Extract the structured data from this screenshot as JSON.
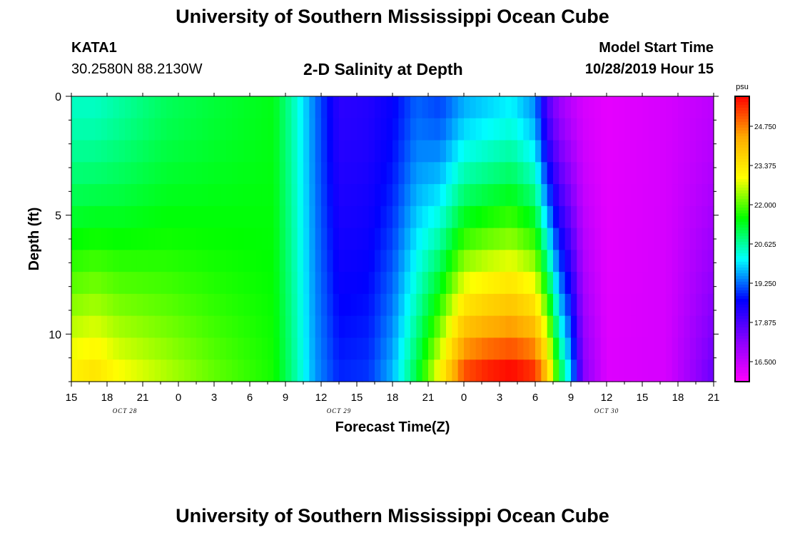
{
  "header": {
    "title_top": "University of Southern Mississippi Ocean Cube",
    "title_bottom": "University of Southern Mississippi Ocean Cube",
    "station": "KATA1",
    "coordinates": "30.2580N 88.2130W",
    "subtitle": "2-D Salinity at Depth",
    "model_start_label": "Model Start Time",
    "model_start_value": "10/28/2019 Hour 15"
  },
  "chart_data": {
    "type": "heatmap",
    "title": "2-D Salinity at Depth",
    "xlabel": "Forecast Time(Z)",
    "ylabel": "Depth (ft)",
    "x_tick_labels": [
      "15",
      "18",
      "21",
      "0",
      "3",
      "6",
      "9",
      "12",
      "15",
      "18",
      "21",
      "0",
      "3",
      "6",
      "9",
      "12",
      "15",
      "18",
      "21"
    ],
    "date_labels": [
      {
        "text": "OCT 28",
        "x_index": 1
      },
      {
        "text": "OCT 29",
        "x_index": 7
      },
      {
        "text": "OCT 30",
        "x_index": 14.5
      }
    ],
    "xlim_hours": [
      0,
      54
    ],
    "ylim": [
      0,
      12
    ],
    "y_ticks": [
      0,
      5,
      10
    ],
    "y_tick_labels": [
      "0",
      "5",
      "10"
    ],
    "depth_levels": [
      0,
      1,
      2,
      3,
      4,
      5,
      6,
      7,
      8,
      9,
      10,
      11,
      12
    ],
    "colorbar": {
      "unit": "psu",
      "min": 15.8,
      "max": 25.8,
      "tick_values": [
        16.5,
        17.875,
        19.25,
        20.625,
        22.0,
        23.375,
        24.75
      ],
      "tick_labels": [
        "16.500",
        "17.875",
        "19.250",
        "20.625",
        "22.000",
        "23.375",
        "24.750"
      ],
      "colors": [
        "#ff00ff",
        "#8800ff",
        "#0000ff",
        "#00ffff",
        "#00ff00",
        "#ffff00",
        "#ffaa00",
        "#ff0000"
      ]
    },
    "salinity_keyframes": [
      {
        "hour": 0,
        "surface": 20.4,
        "bottom": 23.0
      },
      {
        "hour": 2,
        "surface": 20.4,
        "bottom": 23.2
      },
      {
        "hour": 4,
        "surface": 20.6,
        "bottom": 22.8
      },
      {
        "hour": 8,
        "surface": 21.0,
        "bottom": 22.4
      },
      {
        "hour": 12,
        "surface": 21.2,
        "bottom": 22.0
      },
      {
        "hour": 17,
        "surface": 21.4,
        "bottom": 21.6
      },
      {
        "hour": 18.5,
        "surface": 20.6,
        "bottom": 20.8
      },
      {
        "hour": 20.5,
        "surface": 19.3,
        "bottom": 19.5
      },
      {
        "hour": 22.5,
        "surface": 18.2,
        "bottom": 18.8
      },
      {
        "hour": 25,
        "surface": 18.3,
        "bottom": 18.9
      },
      {
        "hour": 27,
        "surface": 18.6,
        "bottom": 19.6
      },
      {
        "hour": 29,
        "surface": 19.2,
        "bottom": 21.0
      },
      {
        "hour": 31,
        "surface": 19.0,
        "bottom": 22.8
      },
      {
        "hour": 33,
        "surface": 19.6,
        "bottom": 24.8
      },
      {
        "hour": 35,
        "surface": 19.8,
        "bottom": 25.2
      },
      {
        "hour": 37,
        "surface": 20.0,
        "bottom": 25.4
      },
      {
        "hour": 39,
        "surface": 19.4,
        "bottom": 25.0
      },
      {
        "hour": 40,
        "surface": 17.8,
        "bottom": 23.5
      },
      {
        "hour": 41,
        "surface": 17.0,
        "bottom": 21.0
      },
      {
        "hour": 42,
        "surface": 16.6,
        "bottom": 19.5
      },
      {
        "hour": 43,
        "surface": 16.3,
        "bottom": 17.2
      },
      {
        "hour": 45,
        "surface": 16.1,
        "bottom": 16.2
      },
      {
        "hour": 50,
        "surface": 16.3,
        "bottom": 16.3
      },
      {
        "hour": 54,
        "surface": 16.6,
        "bottom": 17.5
      }
    ]
  }
}
